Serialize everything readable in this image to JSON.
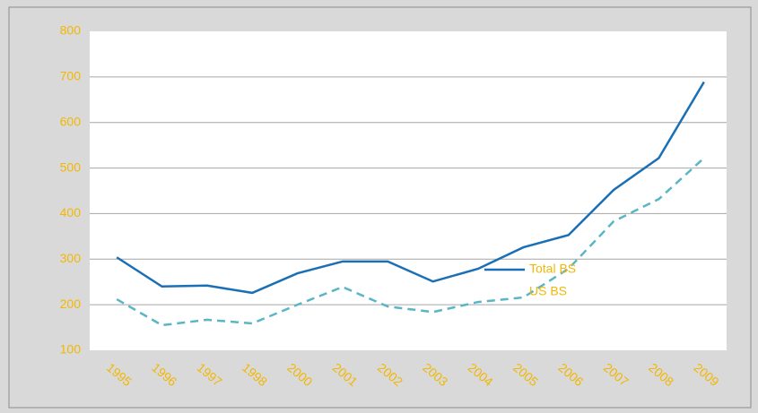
{
  "chart_data": {
    "type": "line",
    "categories": [
      "1995",
      "1996",
      "1997",
      "1998",
      "2000",
      "2001",
      "2002",
      "2003",
      "2004",
      "2005",
      "2006",
      "2007",
      "2008",
      "2009"
    ],
    "series": [
      {
        "name": "Total BS",
        "color": "#1a6fb5",
        "dashed": false,
        "values": [
          304,
          240,
          242,
          226,
          269,
          295,
          295,
          251,
          279,
          326,
          353,
          452,
          522,
          689
        ]
      },
      {
        "name": "US BS",
        "color": "#5ab5c6",
        "dashed": true,
        "values": [
          212,
          155,
          167,
          159,
          200,
          239,
          196,
          184,
          206,
          216,
          279,
          383,
          432,
          522
        ]
      }
    ],
    "ylim": [
      100,
      800
    ],
    "yticks": [
      100,
      200,
      300,
      400,
      500,
      600,
      700,
      800
    ],
    "grid": true,
    "legend_position": "center"
  }
}
